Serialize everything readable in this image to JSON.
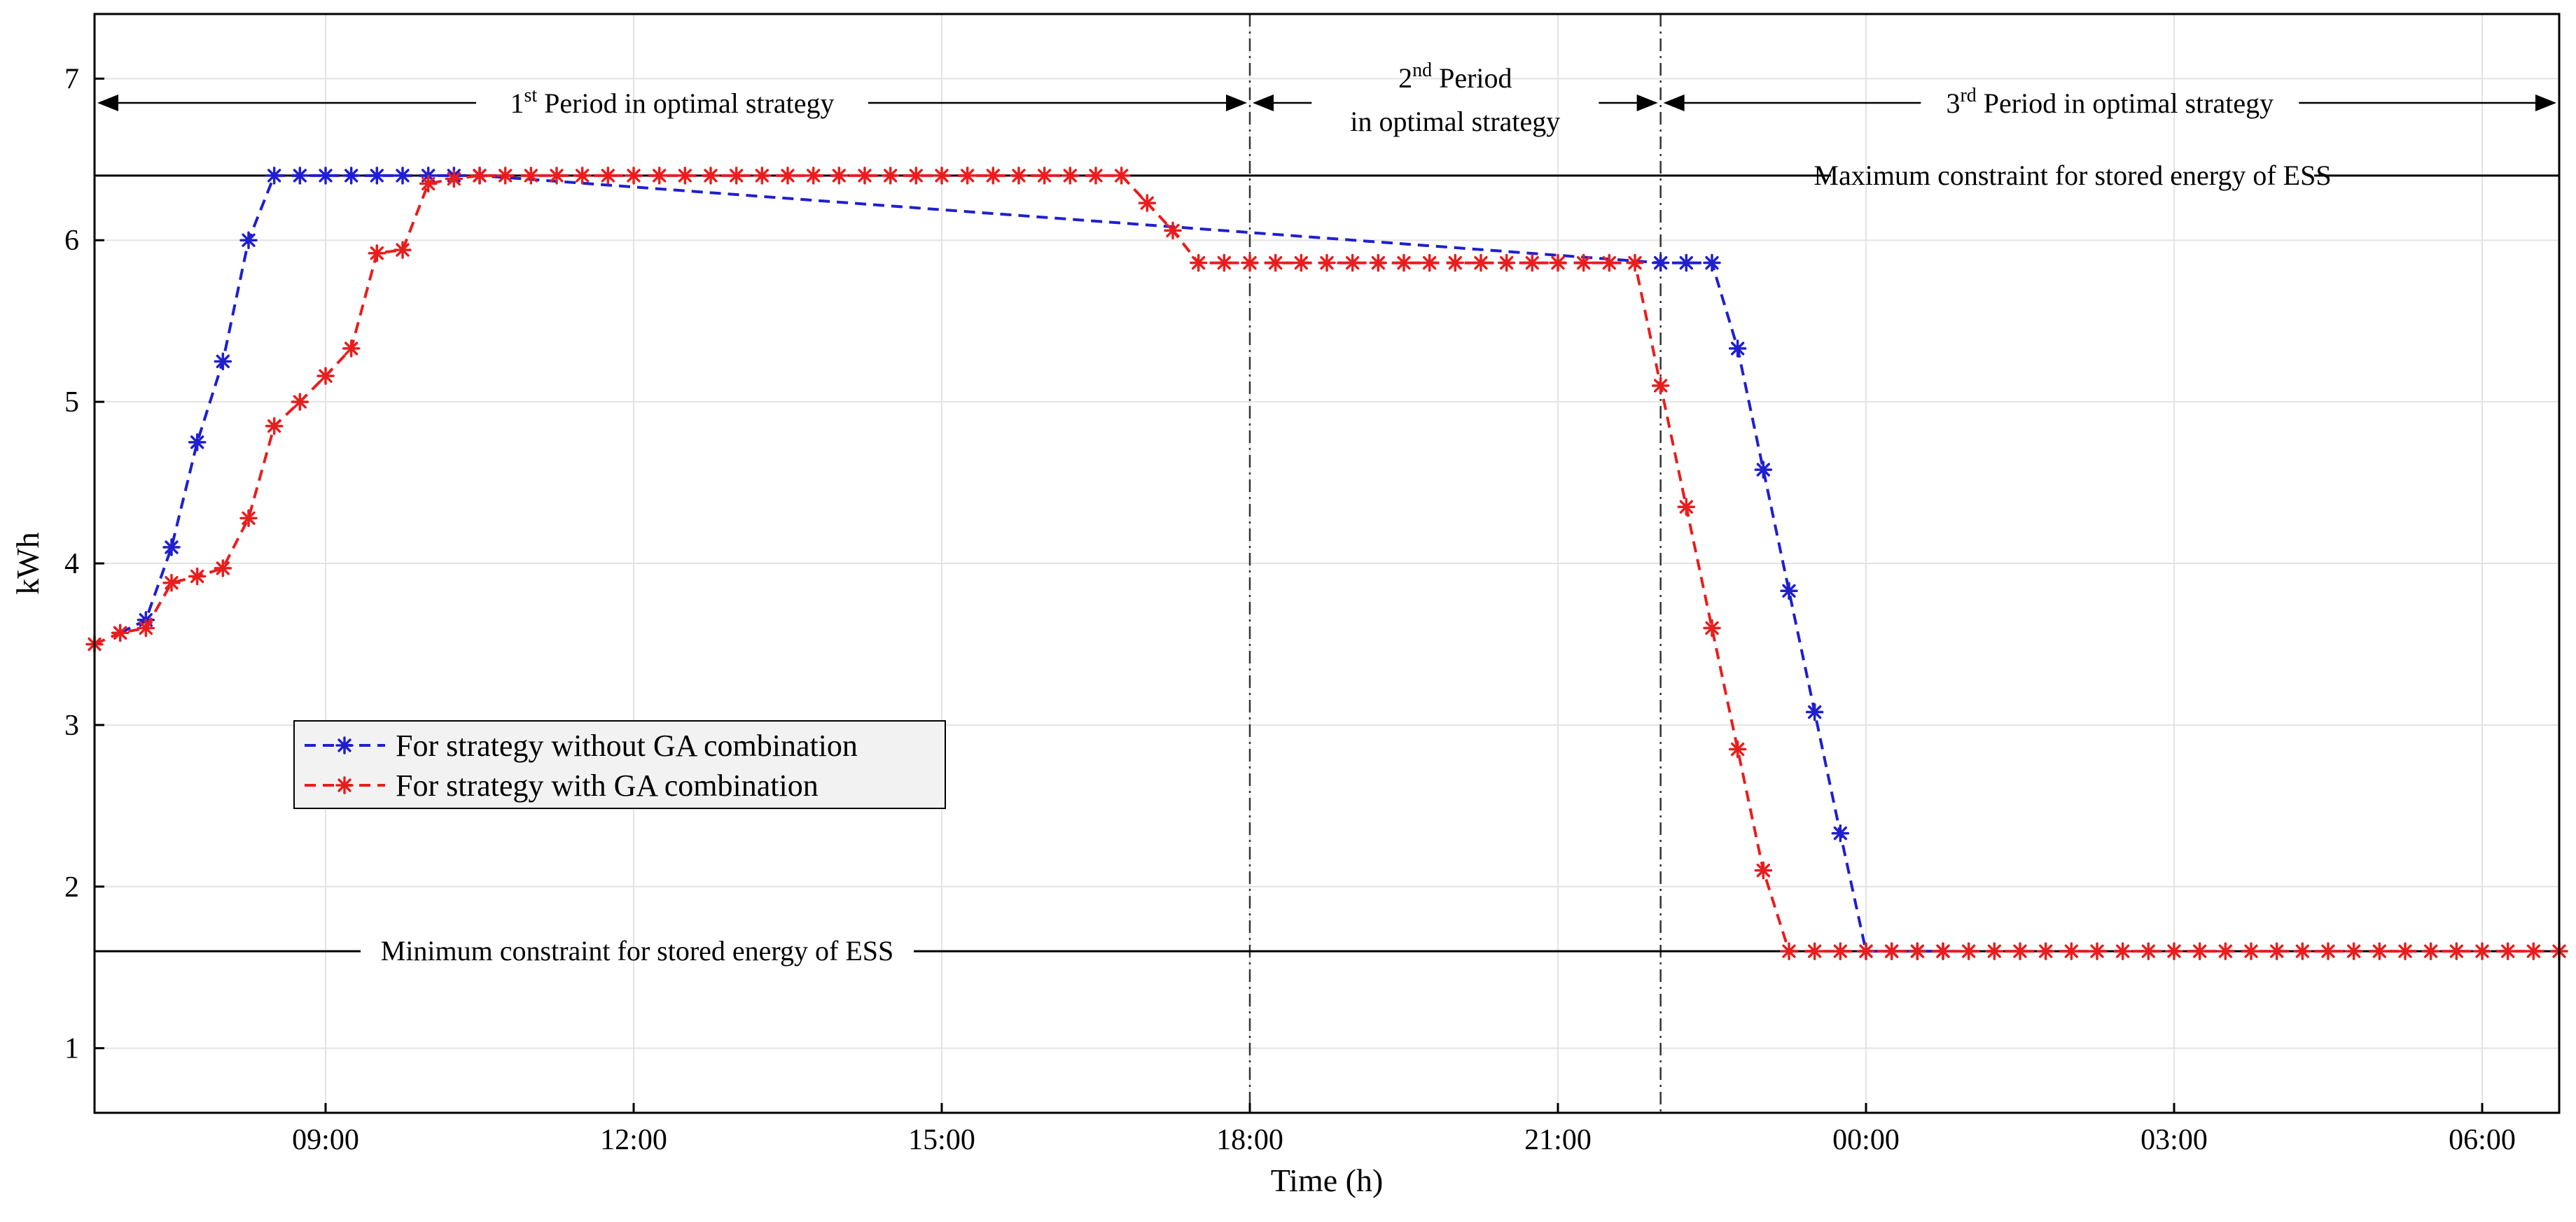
{
  "chart_data": {
    "type": "line",
    "title": "",
    "xlabel": "Time (h)",
    "ylabel": "kWh",
    "x_unit": "hours elapsed from 06:45",
    "xlim": [
      0,
      24
    ],
    "ylim": [
      0.6,
      7.4
    ],
    "grid": true,
    "y_ticks": [
      1,
      2,
      3,
      4,
      5,
      6,
      7
    ],
    "x_ticks": [
      {
        "x": 2.25,
        "label": "09:00"
      },
      {
        "x": 5.25,
        "label": "12:00"
      },
      {
        "x": 8.25,
        "label": "15:00"
      },
      {
        "x": 11.25,
        "label": "18:00"
      },
      {
        "x": 14.25,
        "label": "21:00"
      },
      {
        "x": 17.25,
        "label": "00:00"
      },
      {
        "x": 20.25,
        "label": "03:00"
      },
      {
        "x": 23.25,
        "label": "06:00"
      }
    ],
    "vertical_lines": [
      11.25,
      15.25
    ],
    "constraints": [
      {
        "name": "max",
        "y": 6.4,
        "label": "Maximum constraint for stored energy of ESS",
        "x_start": 0,
        "x_end": 24
      },
      {
        "name": "min",
        "y": 1.6,
        "label": "Minimum constraint for stored energy of ESS",
        "x_start": 0,
        "x_end": 24
      }
    ],
    "periods": [
      {
        "name": "period-1",
        "ordinal": "1",
        "suffix": "st",
        "text": " Period in optimal strategy",
        "line2": "",
        "x_start": 0,
        "x_end": 11.25,
        "y": 6.85
      },
      {
        "name": "period-2",
        "ordinal": "2",
        "suffix": "nd",
        "text": " Period",
        "line2": "in optimal strategy",
        "x_start": 11.25,
        "x_end": 15.25,
        "y": 6.85
      },
      {
        "name": "period-3",
        "ordinal": "3",
        "suffix": "rd",
        "text": " Period in optimal strategy",
        "line2": "",
        "x_start": 15.25,
        "x_end": 24,
        "y": 6.85
      }
    ],
    "legend": {
      "position": "middle-left",
      "entries": [
        {
          "series": "without-ga",
          "label": "For strategy without GA combination"
        },
        {
          "series": "with-ga",
          "label": "For strategy with GA combination"
        }
      ]
    },
    "series": [
      {
        "name": "without-ga",
        "label": "For strategy without GA combination",
        "color": "#1f1fd0",
        "x": [
          0.25,
          0.5,
          0.75,
          1.0,
          1.25,
          1.5,
          1.75,
          2.0,
          2.25,
          2.5,
          2.75,
          3.0,
          3.25,
          3.5,
          3.75,
          15.25,
          15.5,
          15.75,
          16.0,
          16.25,
          16.5,
          16.75,
          17.0,
          17.25,
          17.5,
          17.75,
          18.0
        ],
        "values": [
          3.57,
          3.65,
          4.1,
          4.75,
          5.25,
          6.0,
          6.4,
          6.4,
          6.4,
          6.4,
          6.4,
          6.4,
          6.4,
          6.4,
          6.4,
          5.86,
          5.86,
          5.86,
          5.33,
          4.58,
          3.83,
          3.08,
          2.33,
          1.6,
          1.6,
          1.6,
          1.6
        ]
      },
      {
        "name": "with-ga",
        "label": "For strategy with GA combination",
        "color": "#e81e1e",
        "x": [
          0.0,
          0.25,
          0.5,
          0.75,
          1.0,
          1.25,
          1.5,
          1.75,
          2.0,
          2.25,
          2.5,
          2.75,
          3.0,
          3.25,
          3.5,
          3.75,
          4.0,
          4.25,
          4.5,
          4.75,
          5.0,
          5.25,
          5.5,
          5.75,
          6.0,
          6.25,
          6.5,
          6.75,
          7.0,
          7.25,
          7.5,
          7.75,
          8.0,
          8.25,
          8.5,
          8.75,
          9.0,
          9.25,
          9.5,
          9.75,
          10.0,
          10.25,
          10.5,
          10.75,
          11.0,
          11.25,
          11.5,
          11.75,
          12.0,
          12.25,
          12.5,
          12.75,
          13.0,
          13.25,
          13.5,
          13.75,
          14.0,
          14.25,
          14.5,
          14.75,
          15.0,
          15.25,
          15.5,
          15.75,
          16.0,
          16.25,
          16.5,
          16.75,
          17.0,
          17.25,
          17.5,
          17.75,
          18.0,
          18.25,
          18.5,
          18.75,
          19.0,
          19.25,
          19.5,
          19.75,
          20.0,
          20.25,
          20.5,
          20.75,
          21.0,
          21.25,
          21.5,
          21.75,
          22.0,
          22.25,
          22.5,
          22.75,
          23.0,
          23.25,
          23.5,
          23.75,
          24.0
        ],
        "values": [
          3.5,
          3.57,
          3.6,
          3.88,
          3.92,
          3.97,
          4.28,
          4.85,
          5.0,
          5.16,
          5.33,
          5.92,
          5.94,
          6.35,
          6.38,
          6.4,
          6.4,
          6.4,
          6.4,
          6.4,
          6.4,
          6.4,
          6.4,
          6.4,
          6.4,
          6.4,
          6.4,
          6.4,
          6.4,
          6.4,
          6.4,
          6.4,
          6.4,
          6.4,
          6.4,
          6.4,
          6.4,
          6.4,
          6.4,
          6.4,
          6.4,
          6.23,
          6.06,
          5.86,
          5.86,
          5.86,
          5.86,
          5.86,
          5.86,
          5.86,
          5.86,
          5.86,
          5.86,
          5.86,
          5.86,
          5.86,
          5.86,
          5.86,
          5.86,
          5.86,
          5.86,
          5.1,
          4.35,
          3.6,
          2.85,
          2.1,
          1.6,
          1.6,
          1.6,
          1.6,
          1.6,
          1.6,
          1.6,
          1.6,
          1.6,
          1.6,
          1.6,
          1.6,
          1.6,
          1.6,
          1.6,
          1.6,
          1.6,
          1.6,
          1.6,
          1.6,
          1.6,
          1.6,
          1.6,
          1.6,
          1.6,
          1.6,
          1.6,
          1.6,
          1.6,
          1.6,
          1.6
        ]
      }
    ]
  }
}
